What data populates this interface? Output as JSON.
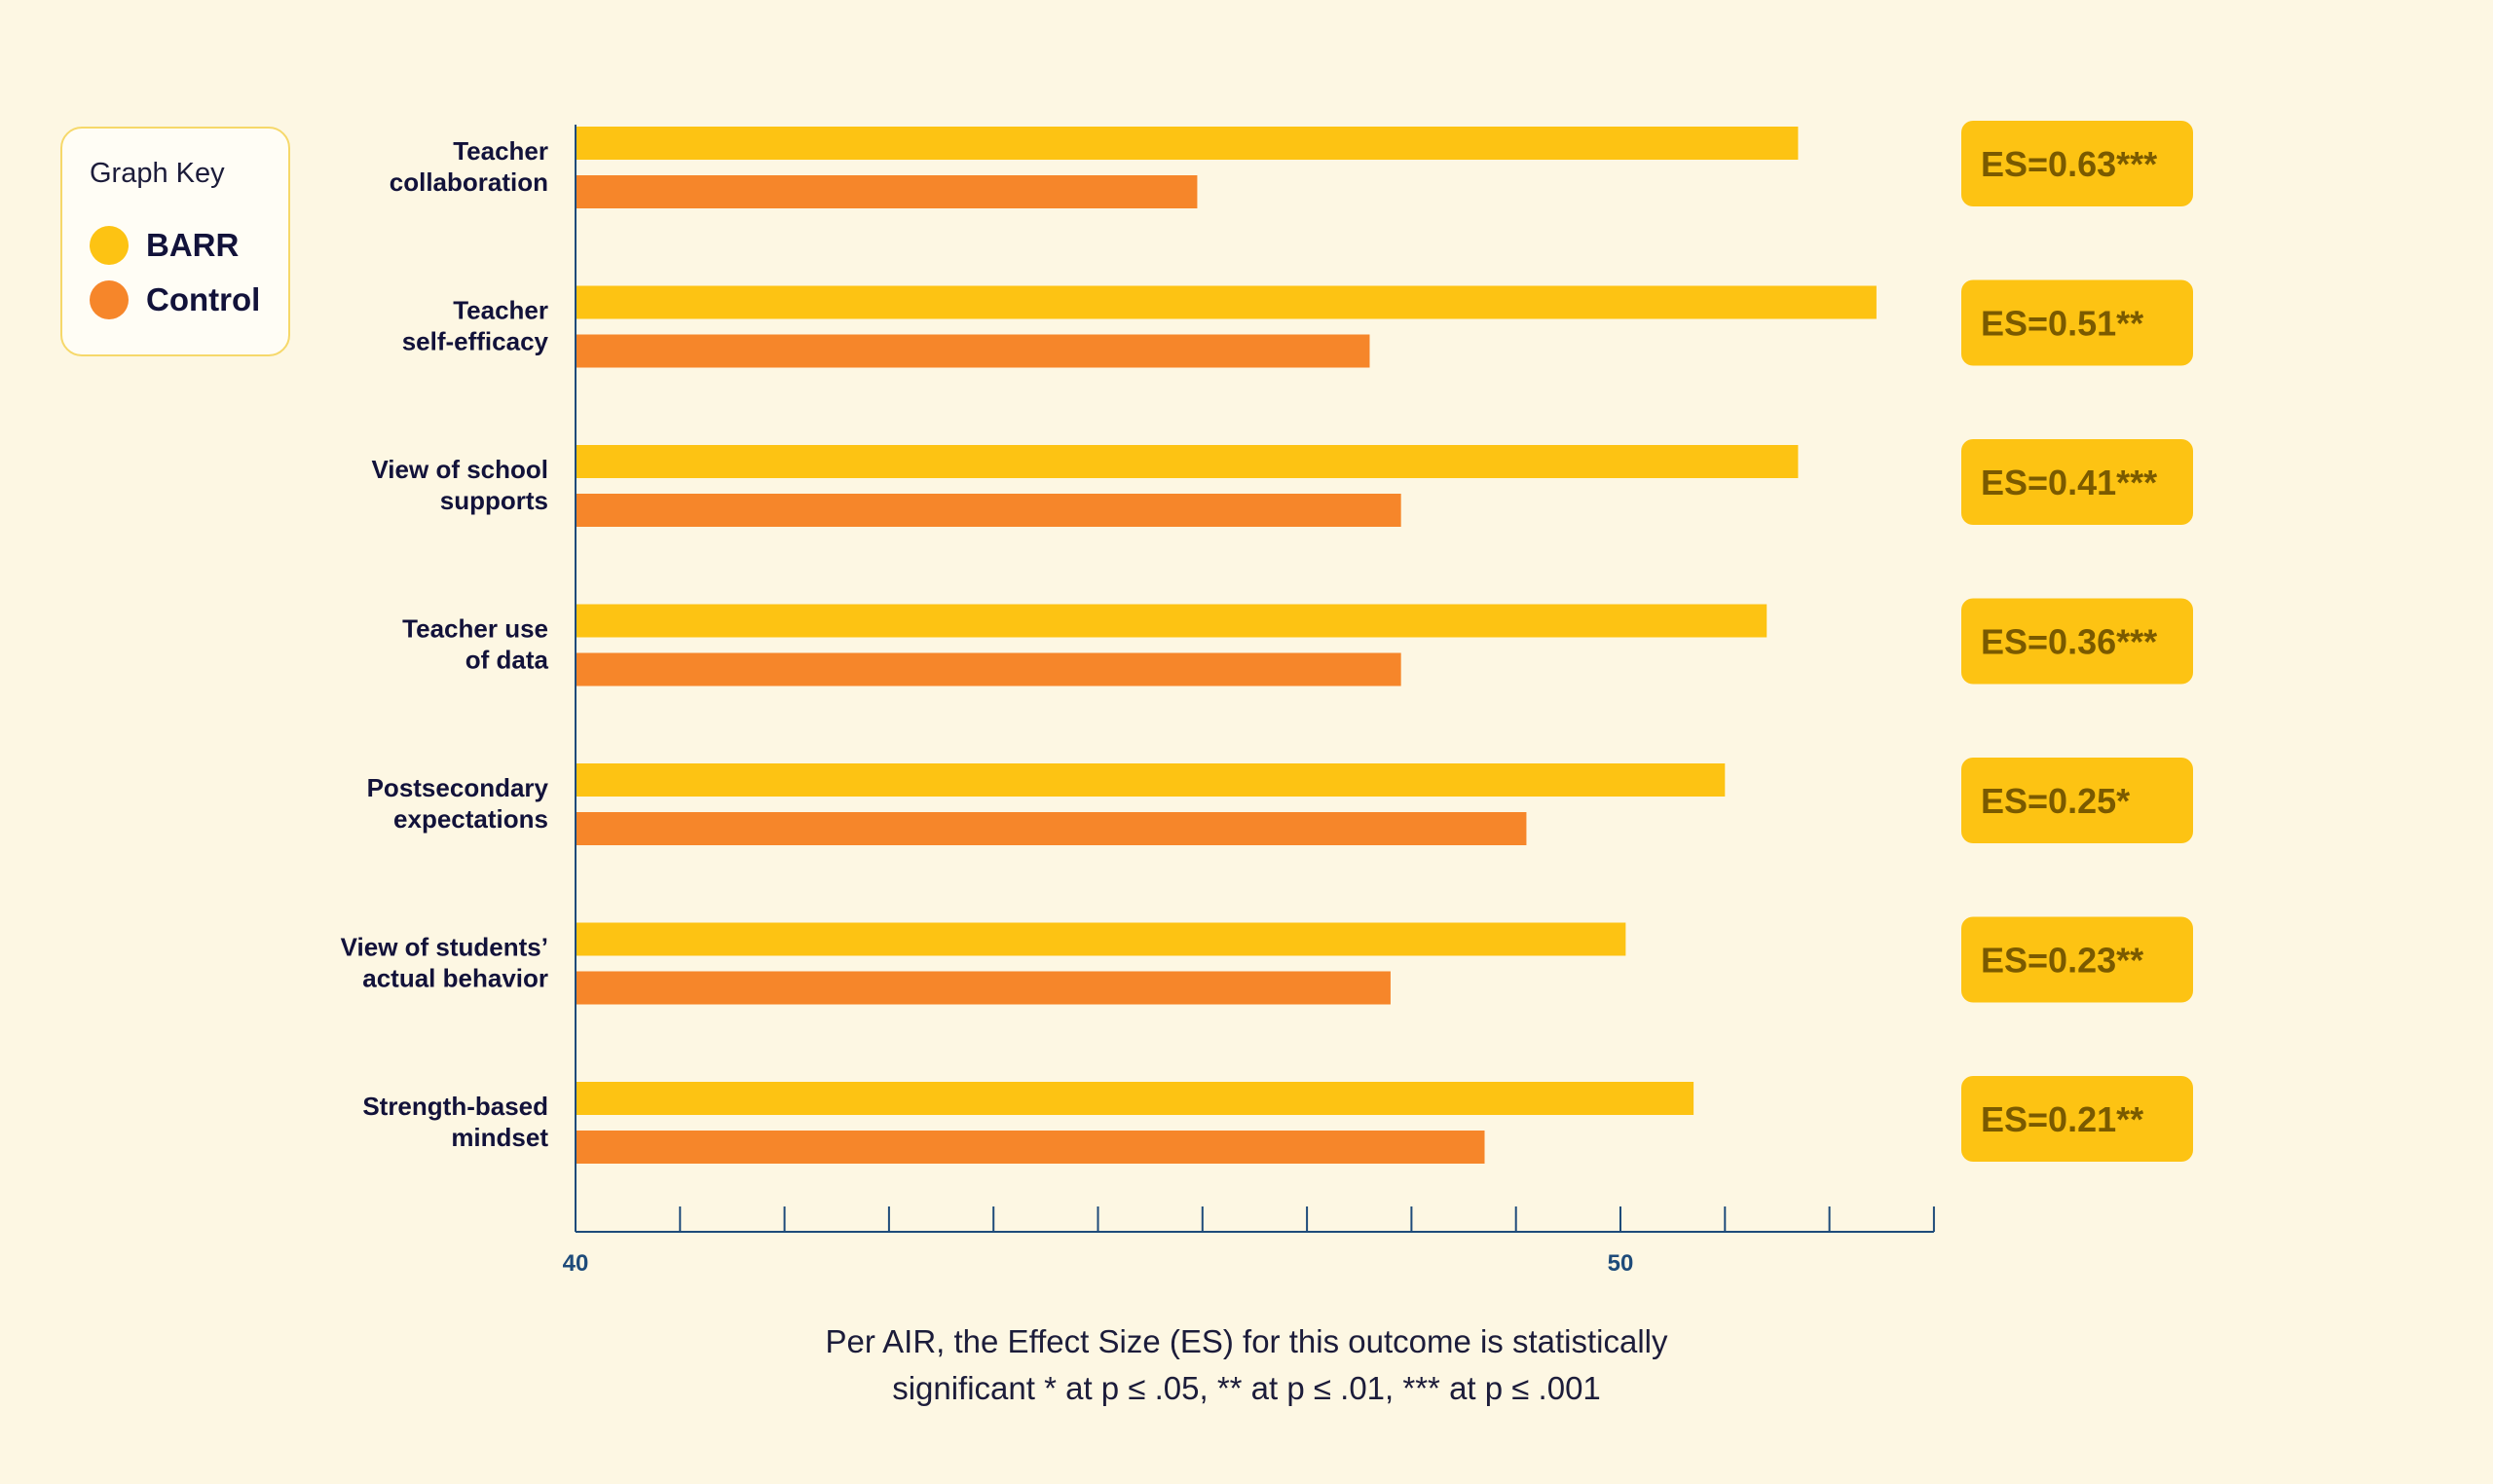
{
  "legend": {
    "title": "Graph Key",
    "items": [
      {
        "label": "BARR",
        "color": "#fdc313"
      },
      {
        "label": "Control",
        "color": "#f6862a"
      }
    ]
  },
  "chart_data": {
    "type": "bar",
    "orientation": "horizontal",
    "categories": [
      [
        "Teacher",
        "collaboration"
      ],
      [
        "Teacher",
        "self-efficacy"
      ],
      [
        "View of school",
        "supports"
      ],
      [
        "Teacher use",
        "of data"
      ],
      [
        "Postsecondary",
        "expectations"
      ],
      [
        "View of students’",
        "actual behavior"
      ],
      [
        "Strength-based",
        "mindset"
      ]
    ],
    "series": [
      {
        "name": "BARR",
        "color": "#fdc313",
        "values": [
          51.7,
          52.45,
          51.7,
          51.4,
          51.0,
          50.05,
          50.7
        ]
      },
      {
        "name": "Control",
        "color": "#f6862a",
        "values": [
          45.95,
          47.6,
          47.9,
          47.9,
          49.1,
          47.8,
          48.7
        ]
      }
    ],
    "effect_sizes": [
      "ES=0.63***",
      "ES=0.51**",
      "ES=0.41***",
      "ES=0.36***",
      "ES=0.25*",
      "ES=0.23**",
      "ES=0.21**"
    ],
    "xlim": [
      40,
      53
    ],
    "xticks": [
      40,
      50
    ],
    "minor_tick_step": 1,
    "xlabel": "",
    "ylabel": "",
    "title": "",
    "legend_position": "top-left",
    "axis_color": "#1e4b7a",
    "badge_color": "#fdc313",
    "badge_text_color": "#7a5a00"
  },
  "footnote": {
    "line1": "Per AIR, the Effect Size (ES) for this outcome is statistically",
    "line2": "significant * at p ≤ .05, ** at p ≤ .01, *** at p ≤ .001"
  }
}
